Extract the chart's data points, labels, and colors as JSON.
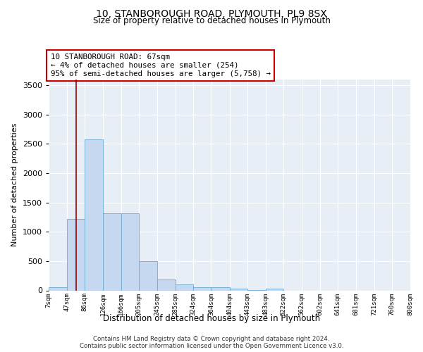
{
  "title1": "10, STANBOROUGH ROAD, PLYMOUTH, PL9 8SX",
  "title2": "Size of property relative to detached houses in Plymouth",
  "xlabel": "Distribution of detached houses by size in Plymouth",
  "ylabel": "Number of detached properties",
  "annotation_lines": [
    "10 STANBOROUGH ROAD: 67sqm",
    "← 4% of detached houses are smaller (254)",
    "95% of semi-detached houses are larger (5,758) →"
  ],
  "footer1": "Contains HM Land Registry data © Crown copyright and database right 2024.",
  "footer2": "Contains public sector information licensed under the Open Government Licence v3.0.",
  "bin_edges": [
    7,
    47,
    86,
    126,
    166,
    205,
    245,
    285,
    324,
    364,
    404,
    443,
    483,
    522,
    562,
    602,
    641,
    681,
    721,
    760,
    800
  ],
  "bin_labels": [
    "7sqm",
    "47sqm",
    "86sqm",
    "126sqm",
    "166sqm",
    "205sqm",
    "245sqm",
    "285sqm",
    "324sqm",
    "364sqm",
    "404sqm",
    "443sqm",
    "483sqm",
    "522sqm",
    "562sqm",
    "602sqm",
    "641sqm",
    "681sqm",
    "721sqm",
    "760sqm",
    "800sqm"
  ],
  "counts": [
    50,
    1220,
    2580,
    1310,
    1310,
    500,
    185,
    100,
    55,
    50,
    30,
    5,
    30,
    0,
    0,
    0,
    0,
    0,
    0,
    0
  ],
  "property_value": 67,
  "bar_color": "#c5d8ef",
  "bar_edge_color": "#6aaad4",
  "vline_color": "#990000",
  "annotation_box_color": "#cc0000",
  "background_color": "#e8eef6",
  "ylim": [
    0,
    3600
  ],
  "yticks": [
    0,
    500,
    1000,
    1500,
    2000,
    2500,
    3000,
    3500
  ]
}
